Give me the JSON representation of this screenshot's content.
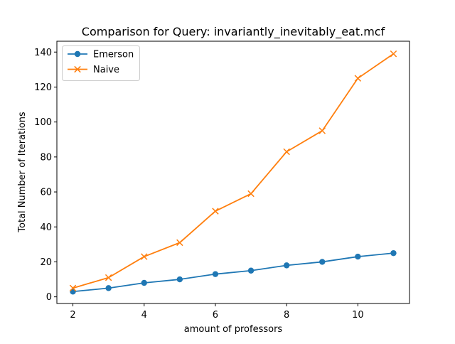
{
  "chart_data": {
    "type": "line",
    "title": "Comparison for Query: invariantly_inevitably_eat.mcf",
    "xlabel": "amount of professors",
    "ylabel": "Total Number of Iterations",
    "x": [
      2,
      3,
      4,
      5,
      6,
      7,
      8,
      9,
      10,
      11
    ],
    "xlim": [
      1.55,
      11.45
    ],
    "ylim": [
      -3.8,
      146.2
    ],
    "xticks": [
      2,
      4,
      6,
      8,
      10
    ],
    "yticks": [
      0,
      20,
      40,
      60,
      80,
      100,
      120,
      140
    ],
    "grid": false,
    "legend_position": "upper-left",
    "series": [
      {
        "name": "Emerson",
        "color": "#1f77b4",
        "marker": "circle",
        "values": [
          3,
          5,
          8,
          10,
          13,
          15,
          18,
          20,
          23,
          25
        ]
      },
      {
        "name": "Naive",
        "color": "#ff7f0e",
        "marker": "x",
        "values": [
          5,
          11,
          23,
          31,
          49,
          59,
          83,
          95,
          125,
          139
        ]
      }
    ]
  }
}
